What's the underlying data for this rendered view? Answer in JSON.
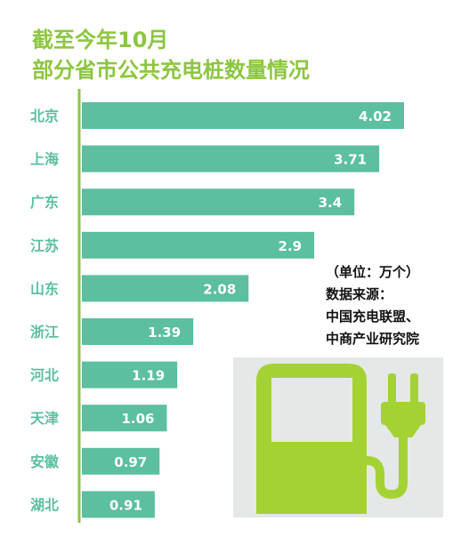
{
  "chart_data": {
    "type": "bar",
    "orientation": "horizontal",
    "title": "截至今年10月",
    "subtitle": "部分省市公共充电桩数量情况",
    "categories": [
      "北京",
      "上海",
      "广东",
      "江苏",
      "山东",
      "浙江",
      "河北",
      "天津",
      "安徽",
      "湖北"
    ],
    "values": [
      4.02,
      3.71,
      3.4,
      2.9,
      2.08,
      1.39,
      1.19,
      1.06,
      0.97,
      0.91
    ],
    "value_labels": [
      "4.02",
      "3.71",
      "3.4",
      "2.9",
      "2.08",
      "1.39",
      "1.19",
      "1.06",
      "0.97",
      "0.91"
    ],
    "xlim": [
      0,
      4.02
    ],
    "grid": false,
    "legend": "none"
  },
  "note": {
    "unit": "（单位：万个）",
    "source_label": "数据来源：",
    "source_line1": "中国充电联盟、",
    "source_line2": "中商产业研究院"
  },
  "colors": {
    "bar": "#5bbfa0",
    "axis": "#8cc63f",
    "title": "#8cc63f",
    "category_text": "#5bbfa0",
    "value_text": "#ffffff",
    "icon_fill": "#a5d233",
    "icon_bg": "#e4e8e6"
  },
  "icon": "ev-charging-station-icon"
}
